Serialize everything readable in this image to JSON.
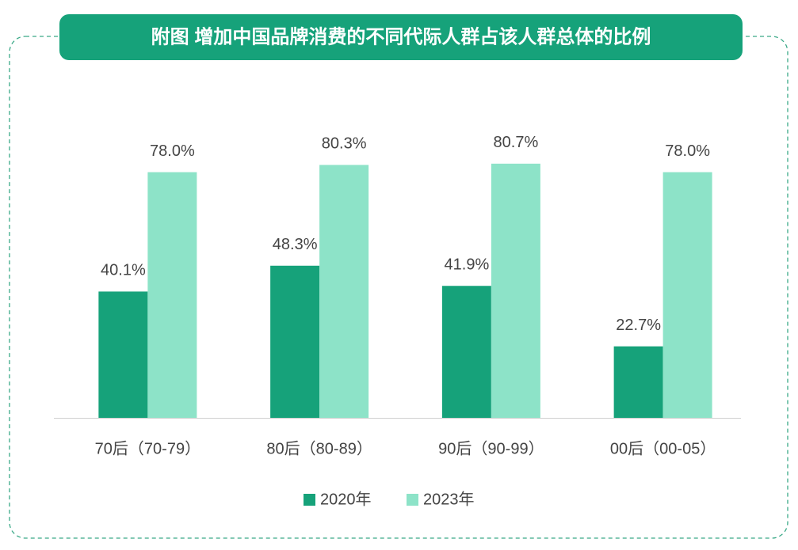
{
  "chart_data": {
    "type": "bar",
    "title": "附图 增加中国品牌消费的不同代际人群占该人群总体的比例",
    "categories": [
      "70后（70-79）",
      "80后（80-89）",
      "90后（90-99）",
      "00后（00-05）"
    ],
    "series": [
      {
        "name": "2020年",
        "color": "#16a27a",
        "values": [
          40.1,
          48.3,
          41.9,
          22.7
        ],
        "value_labels": [
          "40.1%",
          "48.3%",
          "41.9%",
          "22.7%"
        ]
      },
      {
        "name": "2023年",
        "color": "#8de3c8",
        "values": [
          78.0,
          80.3,
          80.7,
          78.0
        ],
        "value_labels": [
          "78.0%",
          "80.3%",
          "80.7%",
          "78.0%"
        ]
      }
    ],
    "legend": "bottom"
  }
}
